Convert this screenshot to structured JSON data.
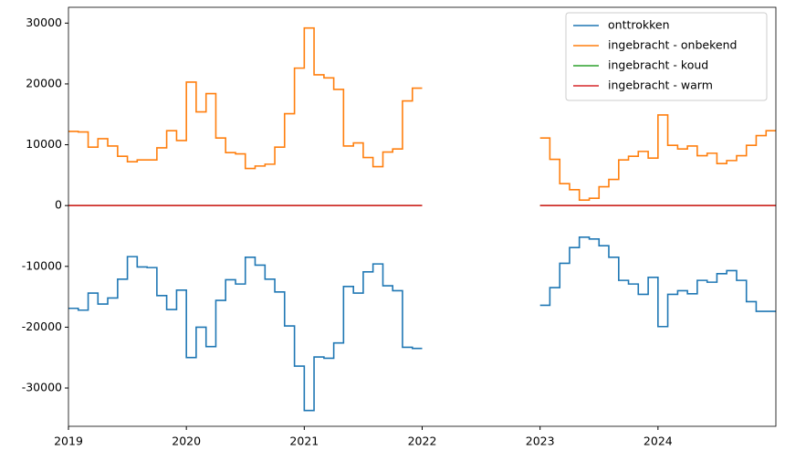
{
  "chart_data": {
    "type": "line",
    "drawstyle": "steps-post",
    "x": [
      2019,
      2019.083,
      2019.167,
      2019.25,
      2019.333,
      2019.417,
      2019.5,
      2019.583,
      2019.667,
      2019.75,
      2019.833,
      2019.917,
      2020,
      2020.083,
      2020.167,
      2020.25,
      2020.333,
      2020.417,
      2020.5,
      2020.583,
      2020.667,
      2020.75,
      2020.833,
      2020.917,
      2021,
      2021.083,
      2021.167,
      2021.25,
      2021.333,
      2021.417,
      2021.5,
      2021.583,
      2021.667,
      2021.75,
      2021.833,
      2021.917,
      2022,
      2022.083,
      2022.167,
      2022.25,
      2022.333,
      2022.417,
      2022.5,
      2022.583,
      2022.667,
      2022.75,
      2022.833,
      2022.917,
      2023,
      2023.083,
      2023.167,
      2023.25,
      2023.333,
      2023.417,
      2023.5,
      2023.583,
      2023.667,
      2023.75,
      2023.833,
      2023.917,
      2024,
      2024.083,
      2024.167,
      2024.25,
      2024.333,
      2024.417,
      2024.5,
      2024.583,
      2024.667,
      2024.75,
      2024.833,
      2024.917
    ],
    "series": [
      {
        "name": "onttrokken",
        "color": "#1f77b4",
        "values": [
          -16900,
          -17200,
          -14400,
          -16200,
          -15200,
          -12100,
          -8400,
          -10100,
          -10200,
          -14800,
          -17100,
          -13900,
          -25000,
          -20000,
          -23200,
          -15600,
          -12200,
          -12900,
          -8500,
          -9800,
          -12100,
          -14200,
          -19800,
          -26400,
          -33700,
          -24900,
          -25100,
          -22600,
          -13300,
          -14400,
          -10900,
          -9600,
          -13200,
          -14000,
          -23300,
          -23500,
          null,
          null,
          null,
          null,
          null,
          null,
          null,
          null,
          null,
          null,
          null,
          null,
          -16400,
          -13500,
          -9500,
          -6900,
          -5200,
          -5500,
          -6600,
          -8500,
          -12300,
          -12900,
          -14600,
          -11800,
          -19900,
          -14600,
          -14000,
          -14500,
          -12300,
          -12600,
          -11200,
          -10700,
          -12300,
          -15800,
          -17400,
          -17400
        ]
      },
      {
        "name": "ingebracht - onbekend",
        "color": "#ff7f0e",
        "values": [
          12200,
          12100,
          9600,
          11000,
          9800,
          8100,
          7200,
          7500,
          7500,
          9500,
          12300,
          10700,
          20300,
          15400,
          18400,
          11100,
          8700,
          8500,
          6100,
          6500,
          6800,
          9600,
          15100,
          22600,
          29200,
          21500,
          21000,
          19100,
          9800,
          10300,
          7900,
          6400,
          8800,
          9300,
          17200,
          19300,
          null,
          null,
          null,
          null,
          null,
          null,
          null,
          null,
          null,
          null,
          null,
          null,
          11100,
          7600,
          3600,
          2600,
          900,
          1200,
          3100,
          4300,
          7500,
          8100,
          8900,
          7800,
          14900,
          9900,
          9300,
          9800,
          8200,
          8600,
          6900,
          7400,
          8200,
          9900,
          11500,
          12300
        ]
      },
      {
        "name": "ingebracht - koud",
        "color": "#2ca02c",
        "values": [
          0,
          0,
          0,
          0,
          0,
          0,
          0,
          0,
          0,
          0,
          0,
          0,
          0,
          0,
          0,
          0,
          0,
          0,
          0,
          0,
          0,
          0,
          0,
          0,
          0,
          0,
          0,
          0,
          0,
          0,
          0,
          0,
          0,
          0,
          0,
          0,
          null,
          null,
          null,
          null,
          null,
          null,
          null,
          null,
          null,
          null,
          null,
          null,
          0,
          0,
          0,
          0,
          0,
          0,
          0,
          0,
          0,
          0,
          0,
          0,
          0,
          0,
          0,
          0,
          0,
          0,
          0,
          0,
          0,
          0,
          0,
          0
        ]
      },
      {
        "name": "ingebracht - warm",
        "color": "#d62728",
        "values": [
          0,
          0,
          0,
          0,
          0,
          0,
          0,
          0,
          0,
          0,
          0,
          0,
          0,
          0,
          0,
          0,
          0,
          0,
          0,
          0,
          0,
          0,
          0,
          0,
          0,
          0,
          0,
          0,
          0,
          0,
          0,
          0,
          0,
          0,
          0,
          0,
          null,
          null,
          null,
          null,
          null,
          null,
          null,
          null,
          null,
          null,
          null,
          null,
          0,
          0,
          0,
          0,
          0,
          0,
          0,
          0,
          0,
          0,
          0,
          0,
          0,
          0,
          0,
          0,
          0,
          0,
          0,
          0,
          0,
          0,
          0,
          0
        ]
      }
    ],
    "xlim": [
      2019,
      2025
    ],
    "xticks": [
      2019,
      2020,
      2021,
      2022,
      2023,
      2024
    ],
    "ylim": [
      -36300,
      32600
    ],
    "yticks": [
      -30000,
      -20000,
      -10000,
      0,
      10000,
      20000,
      30000
    ],
    "legend": "upper right"
  }
}
